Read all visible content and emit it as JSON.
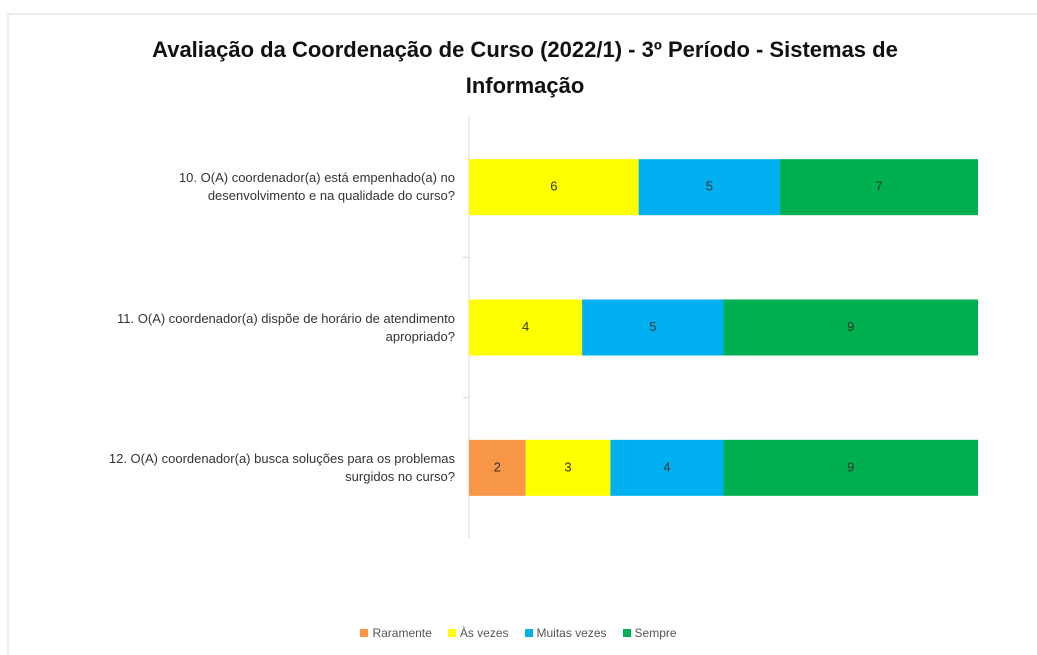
{
  "chart_data": {
    "type": "stacked_barh",
    "title": "Avaliação da Coordenação de Curso (2022/1) - 3º Período - Sistemas de Informação",
    "categories": [
      "10. O(A) coordenador(a) está empenhado(a) no desenvolvimento e na qualidade do curso?",
      "11. O(A) coordenador(a) dispõe de horário de atendimento apropriado?",
      "12. O(A) coordenador(a) busca soluções para os problemas surgidos no curso?"
    ],
    "series": [
      {
        "name": "Raramente",
        "color": "#f79646",
        "values": [
          null,
          null,
          2
        ]
      },
      {
        "name": "Às vezes",
        "color": "#ffff00",
        "values": [
          6,
          4,
          3
        ]
      },
      {
        "name": "Muitas vezes",
        "color": "#00b0f0",
        "values": [
          5,
          5,
          4
        ]
      },
      {
        "name": "Sempre",
        "color": "#00b050",
        "values": [
          7,
          9,
          9
        ]
      }
    ],
    "legend": "bottom"
  }
}
